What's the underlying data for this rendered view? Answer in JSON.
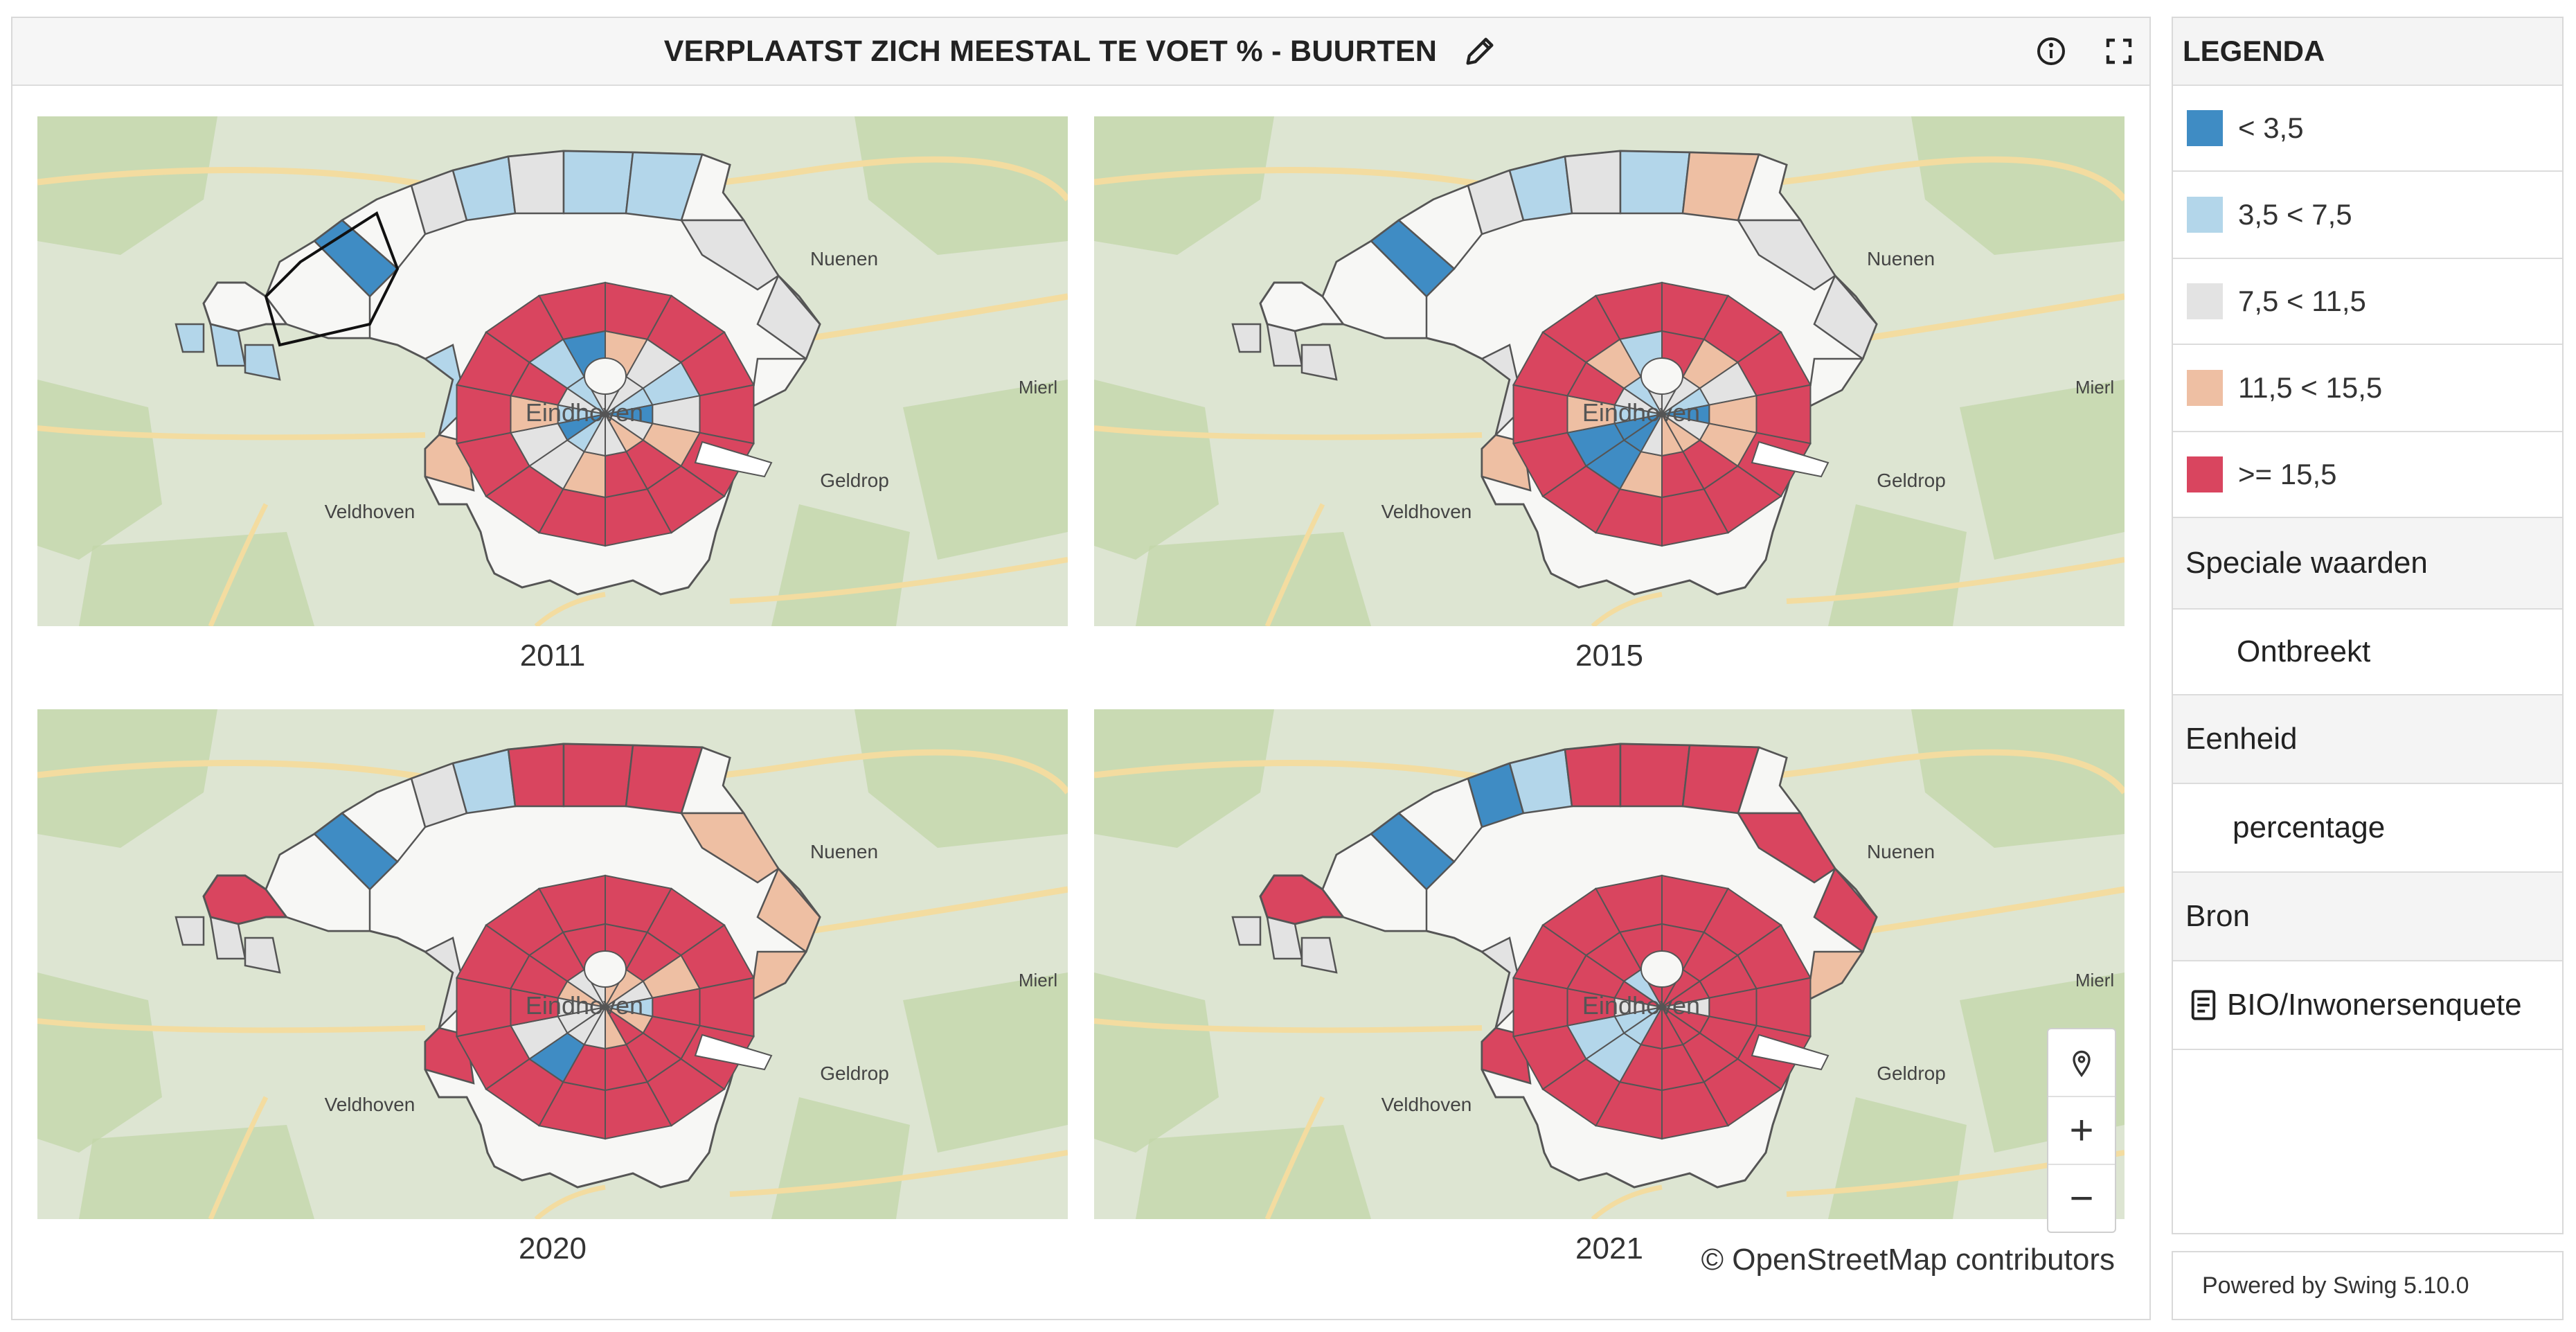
{
  "panel": {
    "title": "VERPLAATST ZICH MEESTAL TE VOET % - BUURTEN",
    "icons": [
      "pencil-icon",
      "info-icon",
      "fullscreen-icon"
    ]
  },
  "maps": [
    {
      "year": "2011"
    },
    {
      "year": "2015"
    },
    {
      "year": "2020"
    },
    {
      "year": "2021"
    }
  ],
  "map_labels": {
    "city": "Eindhoven",
    "nuenen": "Nuenen",
    "mierlo": "Mierl",
    "geldrop": "Geldrop",
    "veldhoven": "Veldhoven"
  },
  "zoom": {
    "icons": [
      "location-pin-icon",
      "zoom-in-icon",
      "zoom-out-icon"
    ],
    "plus": "+",
    "minus": "−"
  },
  "attribution": "© OpenStreetMap contributors",
  "legend": {
    "title": "LEGENDA",
    "classes": [
      {
        "label": "< 3,5",
        "color": "#3f8cc4"
      },
      {
        "label": "3,5 < 7,5",
        "color": "#b3d6ea"
      },
      {
        "label": "7,5 < 11,5",
        "color": "#e3e3e3"
      },
      {
        "label": "11,5 < 15,5",
        "color": "#eebfa3"
      },
      {
        "label": ">= 15,5",
        "color": "#d9455f"
      }
    ],
    "special_title": "Speciale waarden",
    "special_value": "Ontbreekt",
    "unit_title": "Eenheid",
    "unit_value": "percentage",
    "source_title": "Bron",
    "source_value": "BIO/Inwonersenquete"
  },
  "powered_by": "Powered by Swing 5.10.0",
  "colors": {
    "map_bg": "#dde5d2",
    "forest": "#c2d6a8",
    "road": "#f3dca0",
    "missing": "#f7f7f5",
    "boundary": "#555555"
  }
}
